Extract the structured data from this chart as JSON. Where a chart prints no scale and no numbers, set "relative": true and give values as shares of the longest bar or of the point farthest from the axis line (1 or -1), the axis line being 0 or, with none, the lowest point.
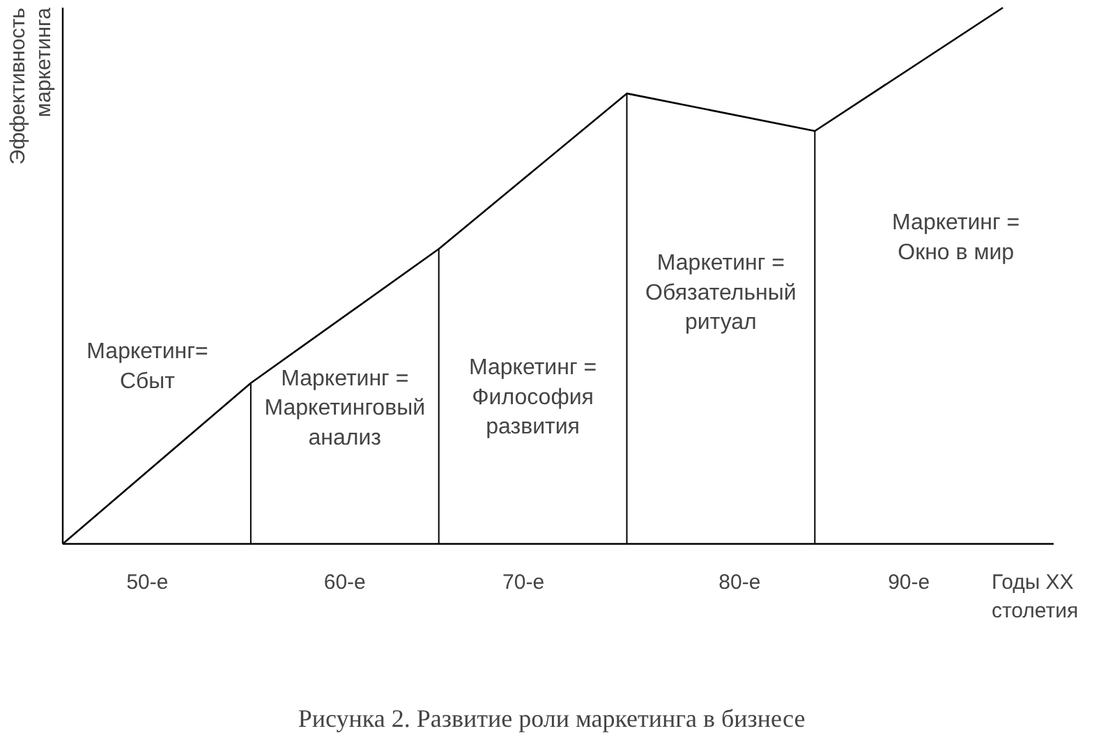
{
  "chart_data": {
    "type": "line",
    "relative": true,
    "color": "#000000",
    "marker": "none",
    "line_style": "solid",
    "grid": false,
    "categories": [
      null,
      null,
      null,
      null,
      null,
      null
    ],
    "values": [
      0,
      0.3,
      0.55,
      0.84,
      0.77,
      1
    ],
    "annotations": [
      "Маркетинг=\nСбыт",
      "Маркетинг =\nМаркетинговый\nанализ",
      "Маркетинг =\nФилософия\nразвития",
      "Маркетинг =\nОбязательный\nритуал",
      "Маркетинг =\nОкно в мир",
      "50-е",
      "60-е",
      "70-е",
      "80-е",
      "90-е"
    ],
    "xlabel": "Годы XX\nстолетия",
    "ylabel": "Эффективность\nмаркетинга",
    "title": "Рисунка 2. Развитие роли маркетинга в бизнесе"
  }
}
